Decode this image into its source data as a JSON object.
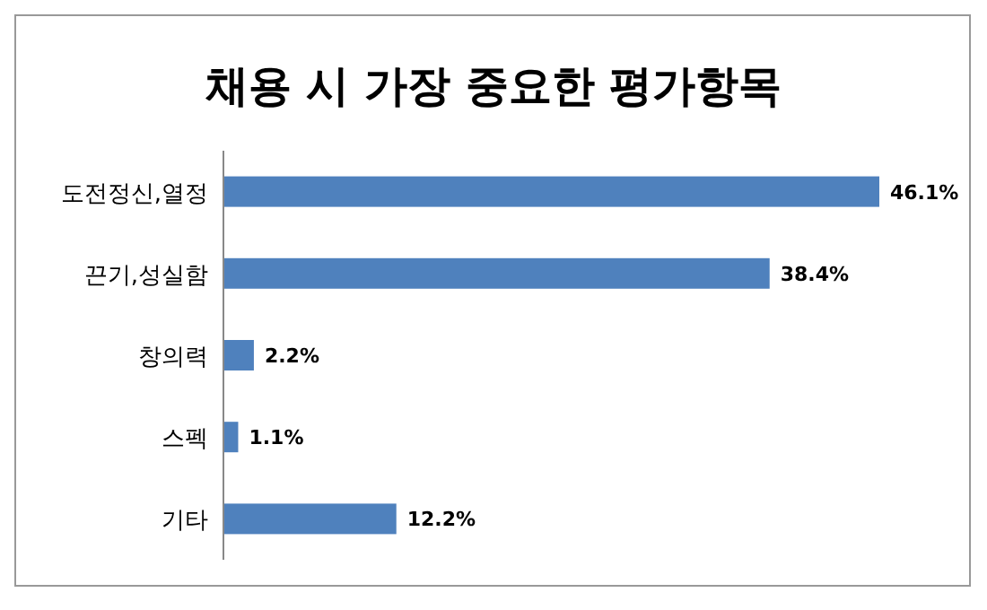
{
  "chart_data": {
    "type": "bar",
    "orientation": "horizontal",
    "title": "채용 시 가장 중요한 평가항목",
    "categories": [
      "도전정신,열정",
      "끈기,성실함",
      "창의력",
      "스펙",
      "기타"
    ],
    "values": [
      46.1,
      38.4,
      2.2,
      1.1,
      12.2
    ],
    "value_labels": [
      "46.1%",
      "38.4%",
      "2.2%",
      "1.1%",
      "12.2%"
    ],
    "color": "#4f81bd"
  }
}
